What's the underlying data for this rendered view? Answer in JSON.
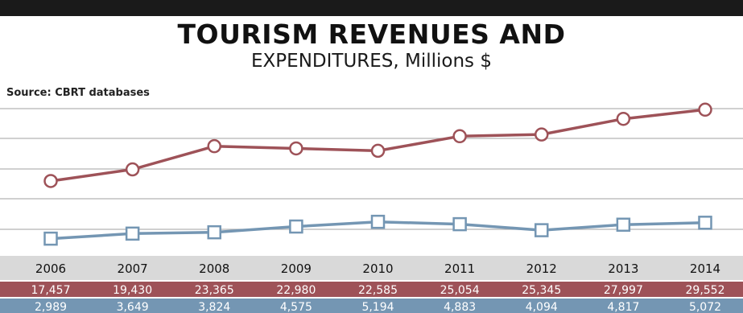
{
  "title": "TOURISM REVENUES AND",
  "subtitle": "EXPENDITURES, Millions $",
  "source": "Source: CBRT databases",
  "colors": {
    "revenue": "#9e5258",
    "expenditure": "#7496b3",
    "grid": "#b5b5b5",
    "year_band": "#d9d9d9",
    "top_rule": "#1a1a1a"
  },
  "chart_data": {
    "type": "line",
    "title": "TOURISM REVENUES AND EXPENDITURES, Millions $",
    "x": [
      "2006",
      "2007",
      "2008",
      "2009",
      "2010",
      "2011",
      "2012",
      "2013",
      "2014"
    ],
    "series": [
      {
        "values": [
          17457,
          19430,
          23365,
          22980,
          22585,
          25054,
          25345,
          27997,
          29552
        ],
        "labels": [
          "17,457",
          "19,430",
          "23,365",
          "22,980",
          "22,585",
          "25,054",
          "25,345",
          "27,997",
          "29,552"
        ],
        "color": "#9e5258",
        "marker": "circle"
      },
      {
        "values": [
          2989,
          3649,
          3824,
          4575,
          5194,
          4883,
          4094,
          4817,
          5072
        ],
        "labels": [
          "2,989",
          "3,649",
          "3,824",
          "4,575",
          "5,194",
          "4,883",
          "4,094",
          "4,817",
          "5,072"
        ],
        "color": "#7496b3",
        "marker": "square"
      }
    ],
    "grid": true,
    "legend": "none"
  }
}
